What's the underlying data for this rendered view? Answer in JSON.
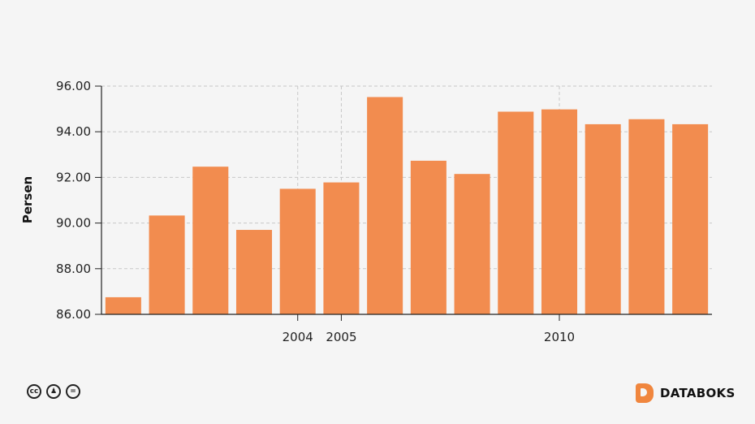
{
  "chart_data": {
    "type": "bar",
    "ylabel": "Persen",
    "ylim": [
      86.0,
      96.0
    ],
    "yticks": [
      "86.00",
      "88.00",
      "90.00",
      "92.00",
      "94.00",
      "96.00"
    ],
    "x_tick_labels": [
      {
        "category": 5,
        "label": "2004"
      },
      {
        "category": 6,
        "label": "2005"
      },
      {
        "category": 11,
        "label": "2010"
      }
    ],
    "categories": [
      1,
      2,
      3,
      4,
      5,
      6,
      7,
      8,
      9,
      10,
      11,
      12,
      13,
      14
    ],
    "values": [
      86.75,
      90.33,
      92.47,
      89.7,
      91.5,
      91.78,
      95.52,
      92.73,
      92.15,
      94.88,
      94.98,
      94.33,
      94.55,
      94.33
    ],
    "bar_color": "#f28c4f",
    "grid": true
  },
  "footer": {
    "license_icons": [
      "cc-icon",
      "by-icon",
      "nd-icon"
    ],
    "brand": "DATABOKS",
    "brand_color": "#f0863e"
  }
}
